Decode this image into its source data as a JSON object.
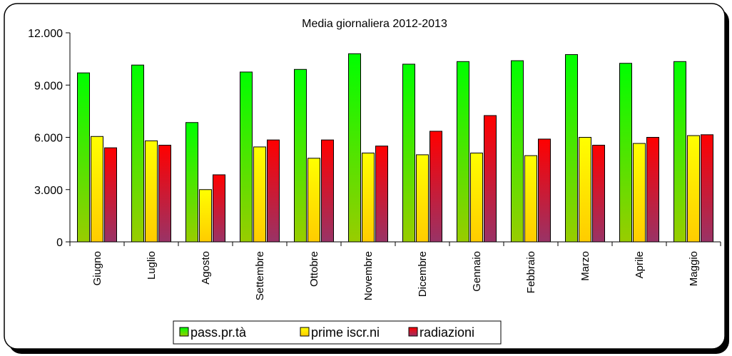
{
  "chart_data": {
    "type": "bar",
    "title": "Media giornaliera 2012-2013",
    "categories": [
      "Giugno",
      "Luglio",
      "Agosto",
      "Settembre",
      "Ottobre",
      "Novembre",
      "Dicembre",
      "Gennaio",
      "Febbraio",
      "Marzo",
      "Aprile",
      "Maggio"
    ],
    "series": [
      {
        "name": "pass.pr.tà",
        "values": [
          9700,
          10150,
          6850,
          9750,
          9900,
          10800,
          10200,
          10350,
          10400,
          10750,
          10250,
          10350
        ],
        "color_top": "#00ff00",
        "color_bottom": "#99cc00"
      },
      {
        "name": "prime iscr.ni",
        "values": [
          6050,
          5800,
          3000,
          5450,
          4800,
          5100,
          5000,
          5100,
          4950,
          6000,
          5650,
          6100
        ],
        "color_top": "#ffff00",
        "color_bottom": "#ffcc00"
      },
      {
        "name": "radiazioni",
        "values": [
          5400,
          5550,
          3850,
          5850,
          5850,
          5500,
          6350,
          7250,
          5900,
          5550,
          6000,
          6150
        ],
        "color_top": "#ff0000",
        "color_bottom": "#993366"
      }
    ],
    "ylim": [
      0,
      12000
    ],
    "yticks": [
      "0",
      "3.000",
      "6.000",
      "9.000",
      "12.000"
    ],
    "ytick_values": [
      0,
      3000,
      6000,
      9000,
      12000
    ],
    "legend_position": "bottom",
    "grid": false
  }
}
